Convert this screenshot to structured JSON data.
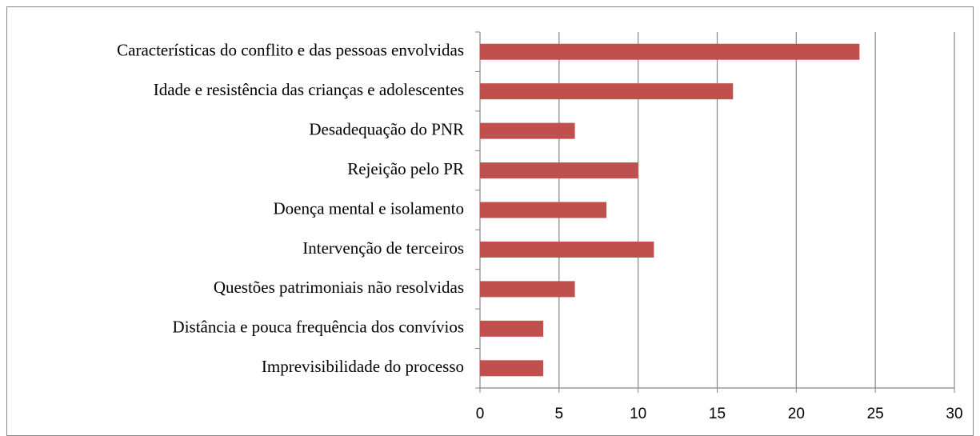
{
  "chart_data": {
    "type": "bar",
    "orientation": "horizontal",
    "categories": [
      "Características do conflito e das pessoas envolvidas",
      "Idade e resistência das crianças e adolescentes",
      "Desadequação do PNR",
      "Rejeição pelo PR",
      "Doença mental e isolamento",
      "Intervenção de terceiros",
      "Questões patrimoniais não resolvidas",
      "Distância e pouca frequência dos convívios",
      "Imprevisibilidade do processo"
    ],
    "values": [
      24,
      16,
      6,
      10,
      8,
      11,
      6,
      4,
      4
    ],
    "color": "#c0504d",
    "xlim": [
      0,
      30
    ],
    "xticks": [
      0,
      5,
      10,
      15,
      20,
      25,
      30
    ],
    "grid": true
  }
}
